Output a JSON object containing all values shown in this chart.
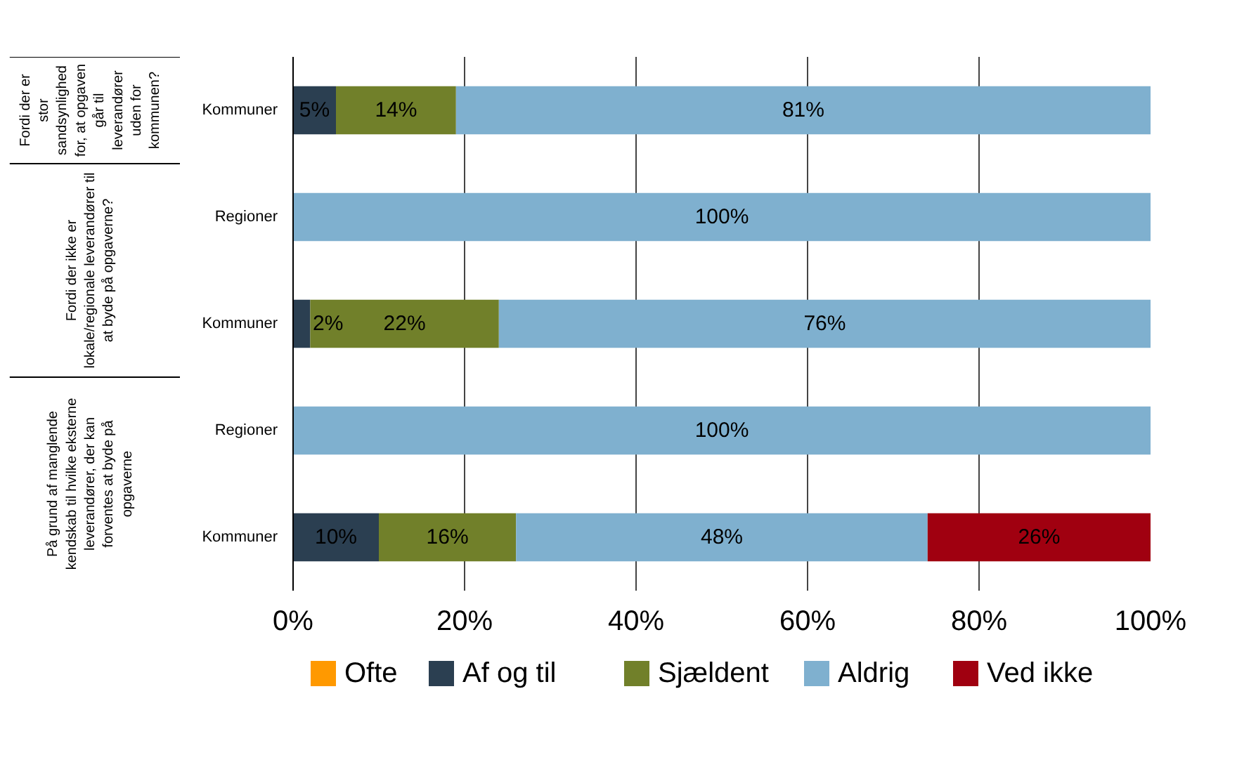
{
  "chart_data": {
    "type": "bar",
    "orientation": "horizontal",
    "stacked": true,
    "categories": [
      "Kommuner",
      "Regioner",
      "Kommuner",
      "Regioner",
      "Kommuner"
    ],
    "series": [
      {
        "name": "Ofte",
        "color": "#ff9900",
        "values": [
          0,
          0,
          0,
          0,
          0
        ],
        "value_labels": [
          null,
          null,
          null,
          null,
          null
        ]
      },
      {
        "name": "Af og til",
        "color": "#2b3f51",
        "values": [
          5,
          0,
          2,
          0,
          10
        ],
        "value_labels": [
          "5%",
          null,
          "2%",
          null,
          "10%"
        ]
      },
      {
        "name": "Sjældent",
        "color": "#71802a",
        "values": [
          14,
          0,
          22,
          0,
          16
        ],
        "value_labels": [
          "14%",
          null,
          "22%",
          null,
          "16%"
        ]
      },
      {
        "name": "Aldrig",
        "color": "#7fb0cf",
        "values": [
          81,
          100,
          76,
          100,
          48
        ],
        "value_labels": [
          "81%",
          "100%",
          "76%",
          "100%",
          "48%"
        ]
      },
      {
        "name": "Ved ikke",
        "color": "#a00010",
        "values": [
          0,
          0,
          0,
          0,
          26
        ],
        "value_labels": [
          null,
          null,
          null,
          null,
          "26%"
        ]
      }
    ],
    "xlim": [
      0,
      100
    ],
    "xticks": [
      {
        "value": 0,
        "label": "0%"
      },
      {
        "value": 20,
        "label": "20%"
      },
      {
        "value": 40,
        "label": "40%"
      },
      {
        "value": 60,
        "label": "60%"
      },
      {
        "value": 80,
        "label": "80%"
      },
      {
        "value": 100,
        "label": "100%"
      }
    ],
    "grid": "x",
    "legend": "bottom",
    "annotations": [
      "Fordi der er\nstor\nsandsynlighed\nfor, at opgaven\ngår til\nleverandører\nuden for\nkommunen?",
      "Fordi der ikke er\nlokale/regionale leverandører til\nat byde på opgaverne?",
      "På grund af manglende\nkendskab til hvilke eksterne\nleverandører, der kan\nforventes at byde på\nopgaverne"
    ]
  }
}
